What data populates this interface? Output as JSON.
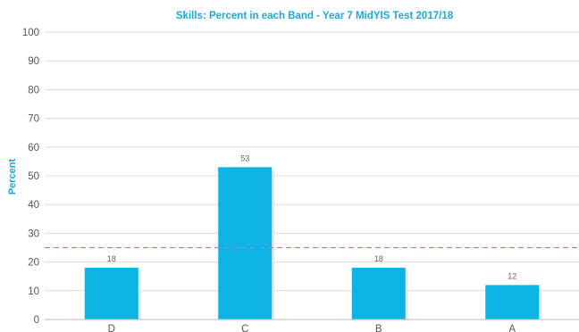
{
  "colors": {
    "bar": "#0cb3e3",
    "title": "#1aa9dc",
    "grid": "#dcdcdc",
    "reference_line": "#e57373"
  },
  "chart_data": {
    "type": "bar",
    "title": "Skills: Percent in each Band - Year 7 MidYIS Test 2017/18",
    "xlabel": "",
    "ylabel": "Percent",
    "categories": [
      "D",
      "C",
      "B",
      "A"
    ],
    "values": [
      18,
      53,
      18,
      12
    ],
    "data_labels": [
      "18",
      "53",
      "18",
      "12"
    ],
    "ylim": [
      0,
      100
    ],
    "yticks": [
      "0",
      "10",
      "20",
      "30",
      "40",
      "50",
      "60",
      "70",
      "80",
      "90",
      "100"
    ],
    "reference_line": 25,
    "grid": true,
    "legend": "none"
  }
}
